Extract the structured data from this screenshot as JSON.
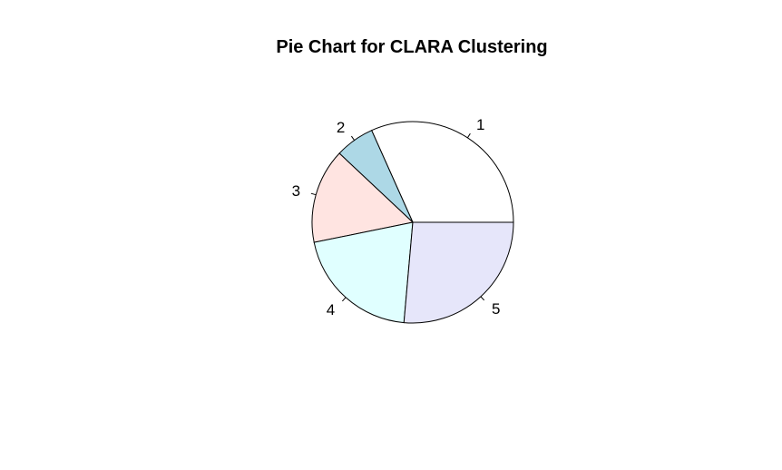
{
  "chart_data": {
    "type": "pie",
    "title": "Pie Chart for CLARA Clustering",
    "start_angle_deg": 0,
    "direction": "counterclockwise",
    "slices": [
      {
        "label": "1",
        "value": 0.317,
        "color": "#FFFFFF"
      },
      {
        "label": "2",
        "value": 0.063,
        "color": "#ADD8E6"
      },
      {
        "label": "3",
        "value": 0.152,
        "color": "#FFE4E1"
      },
      {
        "label": "4",
        "value": 0.204,
        "color": "#E0FFFF"
      },
      {
        "label": "5",
        "value": 0.264,
        "color": "#E6E6FA"
      }
    ]
  }
}
